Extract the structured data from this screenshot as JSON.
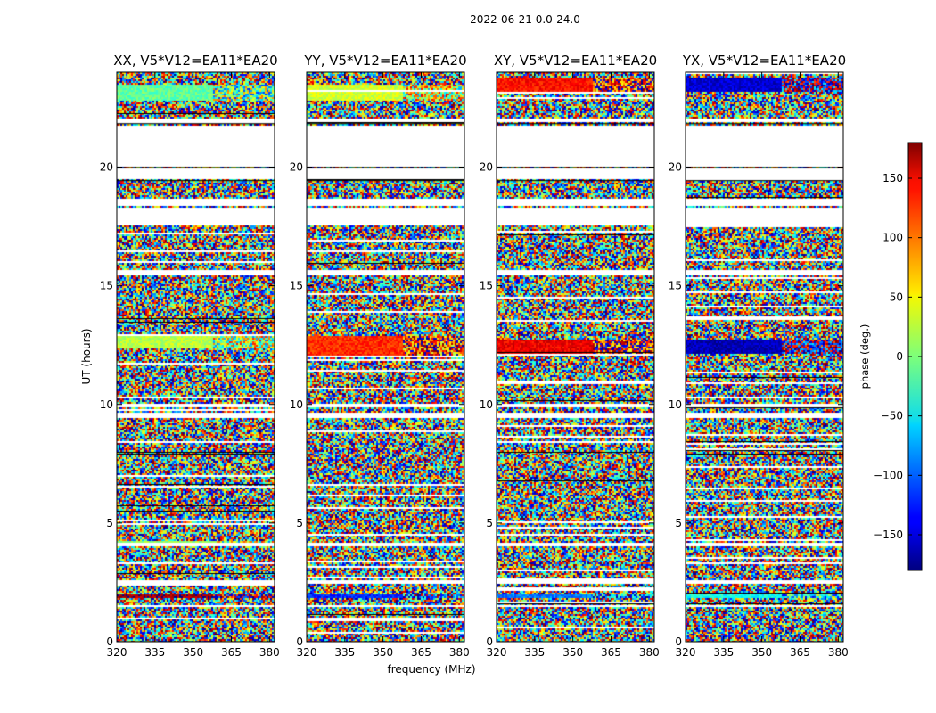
{
  "figure": {
    "suptitle": "2022-06-21 0.0-24.0",
    "xlabel": "frequency (MHz)",
    "ylabel": "UT (hours)",
    "cmap": "jet"
  },
  "chart_data": {
    "type": "heatmap",
    "panels": [
      {
        "title": "XX, V5*V12=EA11*EA20",
        "pol": "XX"
      },
      {
        "title": "YY, V5*V12=EA11*EA20",
        "pol": "YY"
      },
      {
        "title": "XY, V5*V12=EA11*EA20",
        "pol": "XY"
      },
      {
        "title": "YX, V5*V12=EA11*EA20",
        "pol": "YX"
      }
    ],
    "x": {
      "label": "frequency (MHz)",
      "range": [
        320,
        382
      ],
      "ticks": [
        320,
        335,
        350,
        365,
        380
      ],
      "tick_labels": [
        "320",
        "335",
        "350",
        "365",
        "380"
      ]
    },
    "y": {
      "label": "UT (hours)",
      "range": [
        0,
        24
      ],
      "ticks": [
        0,
        5,
        10,
        15,
        20
      ],
      "tick_labels": [
        "0",
        "5",
        "10",
        "15",
        "20"
      ]
    },
    "colorbar": {
      "label": "phase (deg.)",
      "range": [
        -180,
        180
      ],
      "ticks": [
        -150,
        -100,
        -50,
        0,
        50,
        100,
        150
      ],
      "tick_labels": [
        "−150",
        "−100",
        "−50",
        "0",
        "50",
        "100",
        "150"
      ],
      "colormap": "jet"
    },
    "flagged_ut_ranges": [
      [
        21.9,
        22.1
      ],
      [
        18.4,
        18.7
      ],
      [
        18.2,
        18.35
      ],
      [
        17.6,
        18.2
      ],
      [
        15.5,
        15.7
      ],
      [
        9.9,
        10.05
      ],
      [
        9.5,
        9.7
      ],
      [
        4.05,
        4.2
      ],
      [
        3.8,
        3.85
      ],
      [
        2.5,
        2.6
      ],
      [
        1.5,
        1.6
      ]
    ],
    "coherent_bands": {
      "XX": [
        {
          "ut": [
            22.8,
            23.5
          ],
          "phase": -10
        },
        {
          "ut": [
            12.4,
            12.9
          ],
          "phase": 20
        },
        {
          "ut": [
            1.85,
            2.05
          ],
          "phase": 170
        },
        {
          "ut": [
            4.1,
            4.25
          ],
          "phase": 10
        }
      ],
      "YY": [
        {
          "ut": [
            22.8,
            23.5
          ],
          "phase": 30
        },
        {
          "ut": [
            12.0,
            12.9
          ],
          "phase": 120
        },
        {
          "ut": [
            1.85,
            2.05
          ],
          "phase": -120
        }
      ],
      "XY": [
        {
          "ut": [
            23.2,
            23.8
          ],
          "phase": 130
        },
        {
          "ut": [
            12.2,
            12.8
          ],
          "phase": 140
        },
        {
          "ut": [
            1.85,
            2.05
          ],
          "phase": -90
        }
      ],
      "YX": [
        {
          "ut": [
            23.2,
            23.8
          ],
          "phase": -150
        },
        {
          "ut": [
            12.2,
            12.8
          ],
          "phase": -160
        },
        {
          "ut": [
            1.85,
            2.05
          ],
          "phase": -40
        }
      ]
    }
  }
}
